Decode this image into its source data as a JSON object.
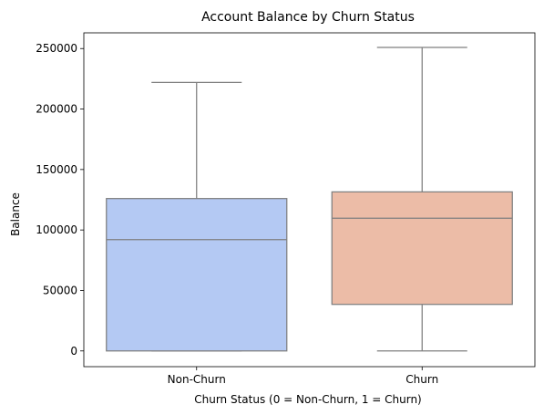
{
  "chart_data": {
    "type": "box",
    "title": "Account Balance by Churn Status",
    "xlabel": "Churn Status (0 = Non-Churn, 1 = Churn)",
    "ylabel": "Balance",
    "categories": [
      "Non-Churn",
      "Churn"
    ],
    "ylim": [
      -13000,
      263000
    ],
    "yticks": [
      0,
      50000,
      100000,
      150000,
      200000,
      250000
    ],
    "ytick_labels": [
      "0",
      "50000",
      "100000",
      "150000",
      "200000",
      "250000"
    ],
    "grid": false,
    "boxes": [
      {
        "category": "Non-Churn",
        "min": 0,
        "q1": 0,
        "median": 92000,
        "q3": 126000,
        "max": 222000,
        "color": "#b4c9f3"
      },
      {
        "category": "Churn",
        "min": 0,
        "q1": 38500,
        "median": 109700,
        "q3": 131500,
        "max": 250900,
        "color": "#ecbca7"
      }
    ],
    "line_color": "#7f7f7f"
  }
}
